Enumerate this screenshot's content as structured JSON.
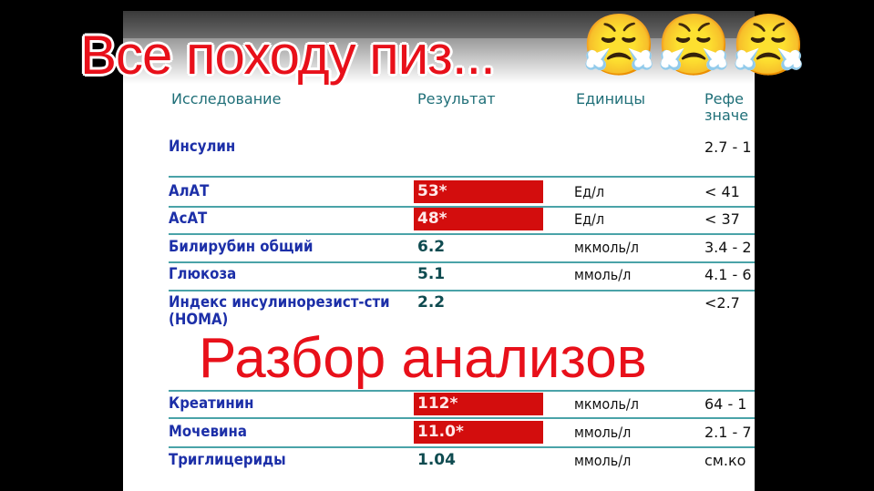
{
  "overlay": {
    "caption_top": "Все походу пиз...",
    "caption_main": "Разбор анализов",
    "emojis": [
      "😤",
      "😤",
      "😤"
    ]
  },
  "table": {
    "headers": {
      "test": "Исследование",
      "result": "Результат",
      "units": "Единицы",
      "reference": "Рефе",
      "reference_line2": "значе"
    },
    "rows": [
      {
        "name": "Инсулин",
        "result": "",
        "units": "",
        "ref": "2.7 - 1",
        "flag": false
      },
      {
        "name": "АлАТ",
        "result": "53*",
        "units": "Ед/л",
        "ref": "< 41",
        "flag": true
      },
      {
        "name": "АсАТ",
        "result": "48*",
        "units": "Ед/л",
        "ref": "< 37",
        "flag": true
      },
      {
        "name": "Билирубин общий",
        "result": "6.2",
        "units": "мкмоль/л",
        "ref": "3.4 - 2",
        "flag": false
      },
      {
        "name": "Глюкоза",
        "result": "5.1",
        "units": "ммоль/л",
        "ref": "4.1 - 6",
        "flag": false
      },
      {
        "name": "Индекс инсулинорезист-сти",
        "name_line2": "(HOMA)",
        "result": "2.2",
        "units": "",
        "ref": "<2.7",
        "flag": false
      },
      {
        "name": "Креатинин",
        "result": "112*",
        "units": "мкмоль/л",
        "ref": "64 - 1",
        "flag": true
      },
      {
        "name": "Мочевина",
        "result": "11.0*",
        "units": "ммоль/л",
        "ref": "2.1 - 7",
        "flag": true
      },
      {
        "name": "Триглицериды",
        "result": "1.04",
        "units": "ммоль/л",
        "ref": "см.ко",
        "flag": false
      }
    ],
    "colors": {
      "flag": "#d30d0d",
      "name": "#1c2fa8",
      "header": "#1f6f78",
      "rule": "#4aa3a8"
    }
  }
}
